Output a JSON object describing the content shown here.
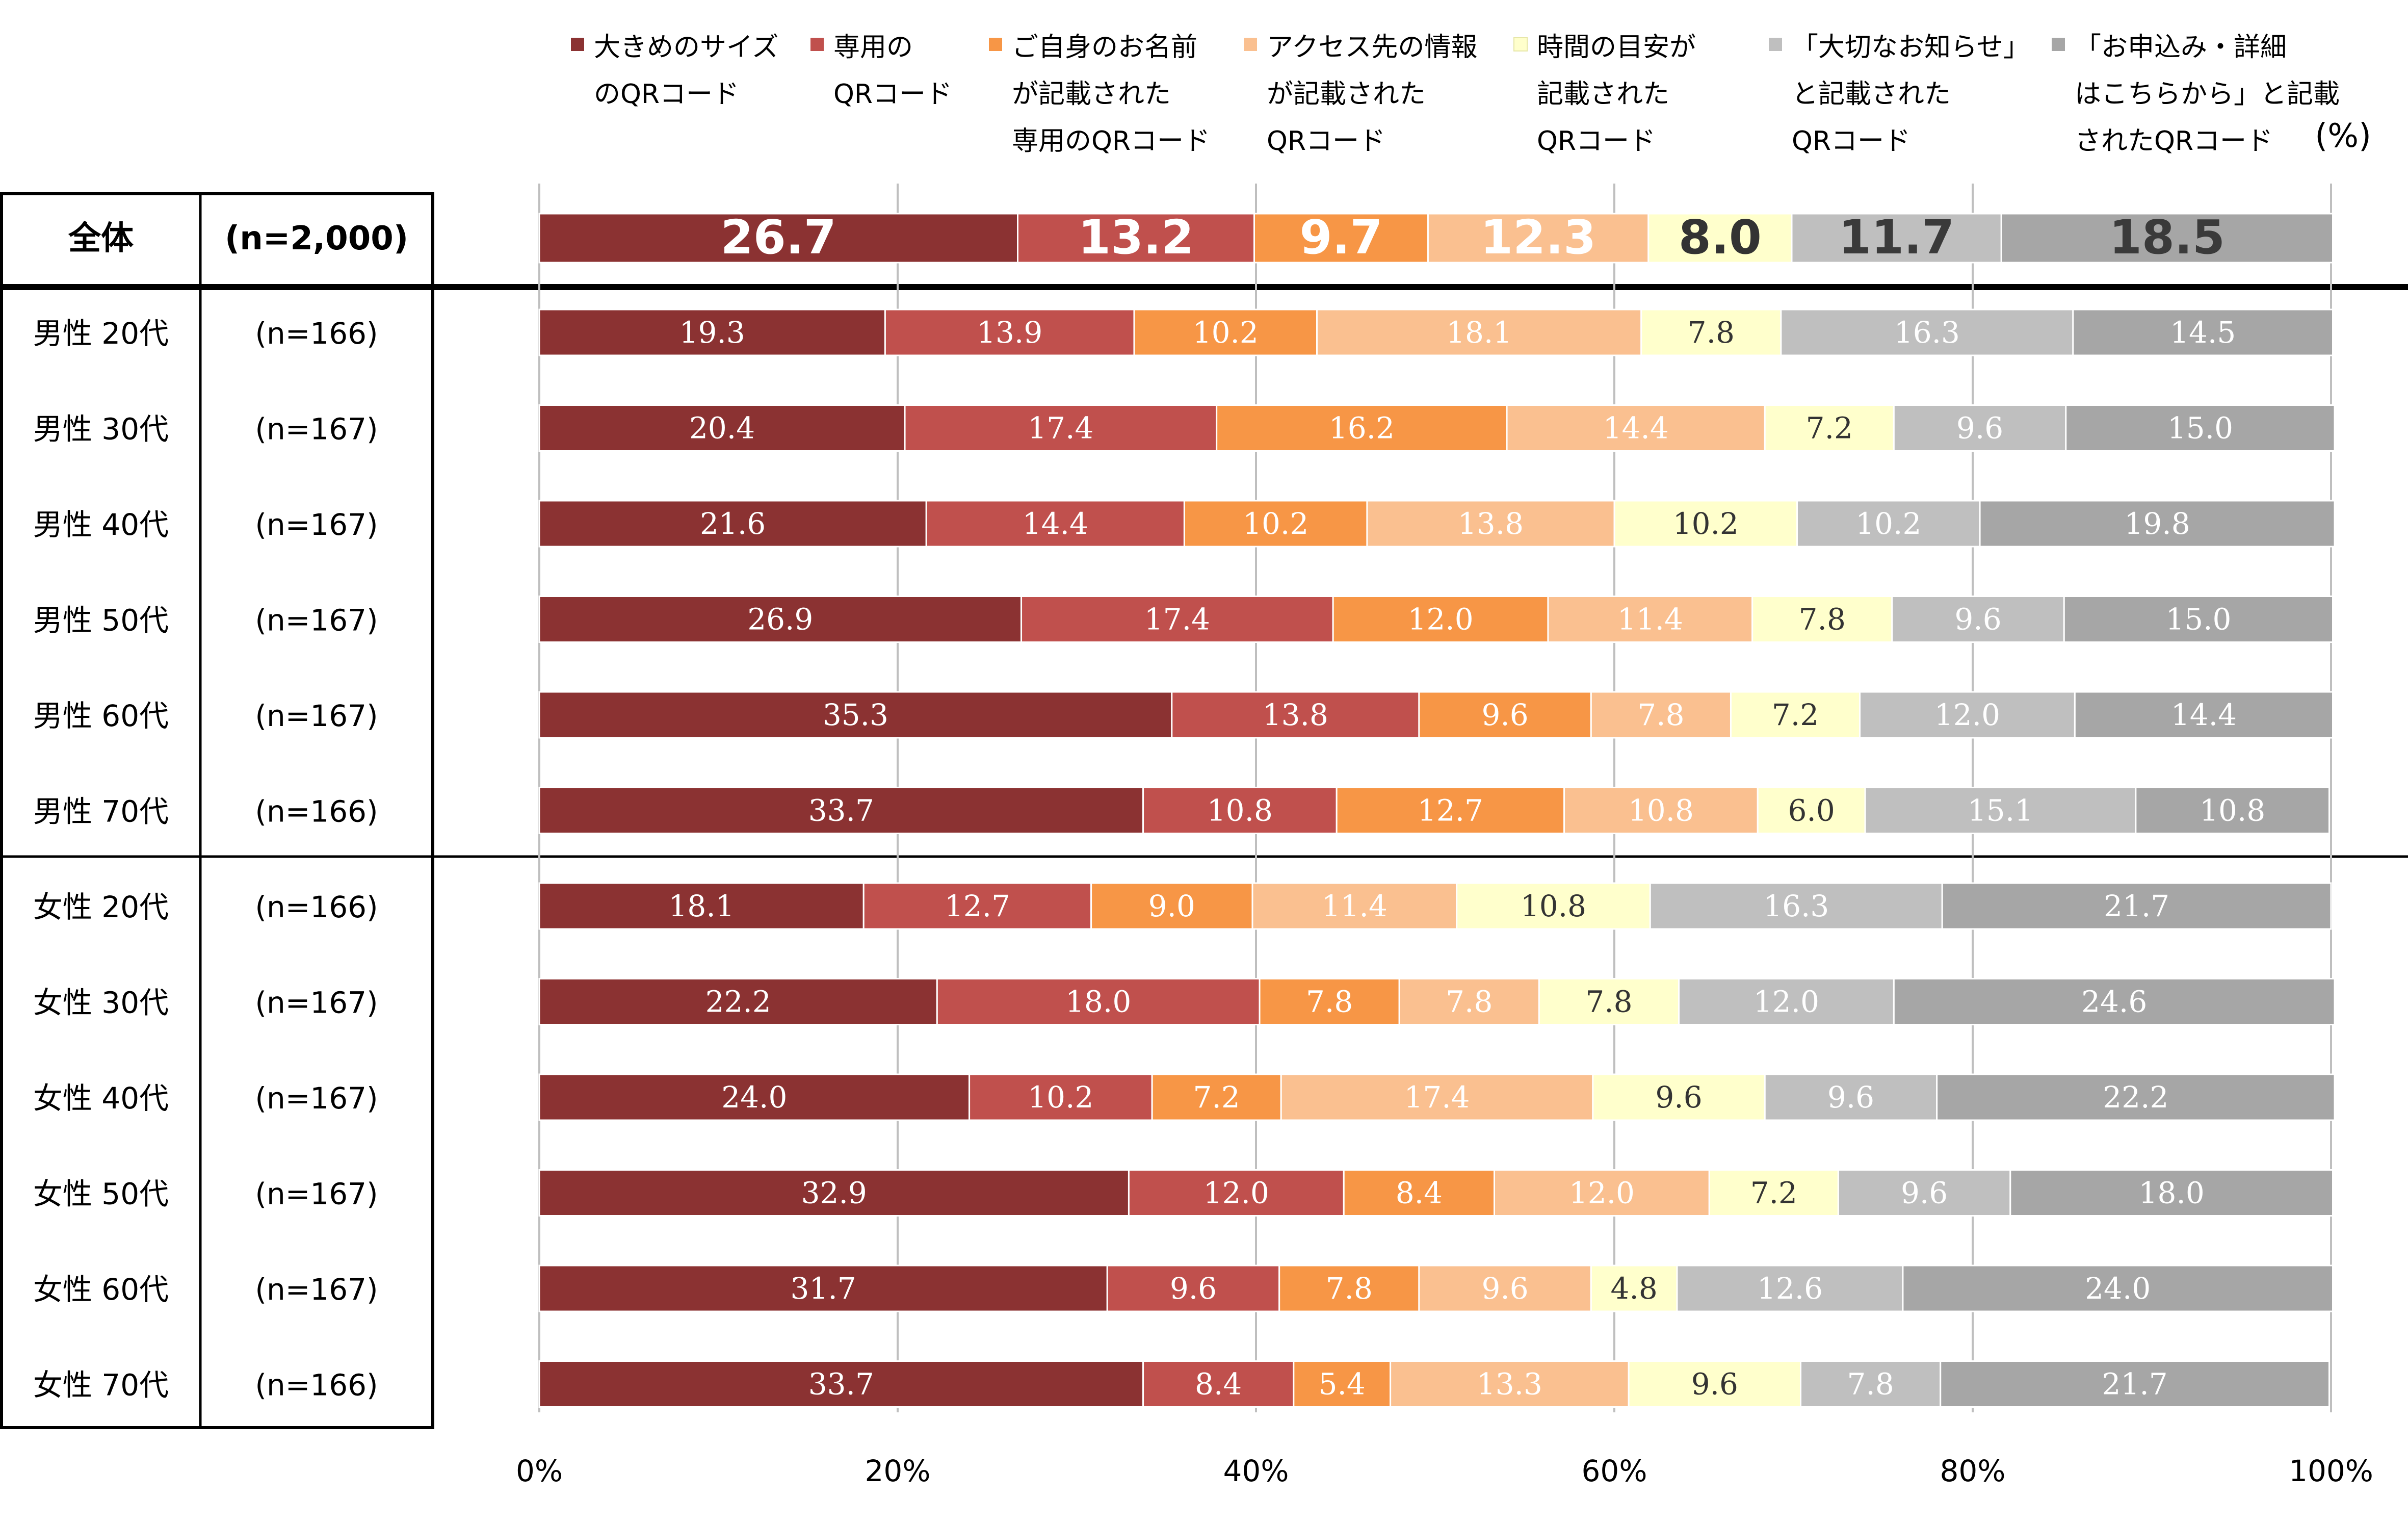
{
  "chart_data": {
    "type": "bar",
    "stacked": true,
    "orientation": "horizontal",
    "unit_label": "(%)",
    "xlim": [
      0,
      100
    ],
    "x_ticks": [
      "0%",
      "20%",
      "40%",
      "60%",
      "80%",
      "100%"
    ],
    "grid": true,
    "legend_position": "top",
    "series": [
      {
        "name": [
          "大きめのサイズ",
          "のQRコード"
        ],
        "color": "#8B3232"
      },
      {
        "name": [
          "専用の",
          "QRコード"
        ],
        "color": "#C0504D"
      },
      {
        "name": [
          "ご自身のお名前",
          "が記載された",
          "専用のQRコード"
        ],
        "color": "#F79646"
      },
      {
        "name": [
          "アクセス先の情報",
          "が記載された",
          "QRコード"
        ],
        "color": "#FAC090"
      },
      {
        "name": [
          "時間の目安が",
          "記載された",
          "QRコード"
        ],
        "color": "#FFFFCC"
      },
      {
        "name": [
          "「大切なお知らせ」",
          "と記載された",
          "QRコード"
        ],
        "color": "#BFBFBF"
      },
      {
        "name": [
          "「お申込み・詳細",
          "はこちらから」と記載",
          "されたQRコード"
        ],
        "color": "#A6A6A6"
      }
    ],
    "rows": [
      {
        "group": "全体",
        "n": "(n=2,000)",
        "total": true,
        "values": [
          26.7,
          13.2,
          9.7,
          12.3,
          8.0,
          11.7,
          18.5
        ]
      },
      {
        "group": "男性  20代",
        "n": "(n=166)",
        "values": [
          19.3,
          13.9,
          10.2,
          18.1,
          7.8,
          16.3,
          14.5
        ]
      },
      {
        "group": "男性  30代",
        "n": "(n=167)",
        "values": [
          20.4,
          17.4,
          16.2,
          14.4,
          7.2,
          9.6,
          15.0
        ]
      },
      {
        "group": "男性  40代",
        "n": "(n=167)",
        "values": [
          21.6,
          14.4,
          10.2,
          13.8,
          10.2,
          10.2,
          19.8
        ]
      },
      {
        "group": "男性  50代",
        "n": "(n=167)",
        "values": [
          26.9,
          17.4,
          12.0,
          11.4,
          7.8,
          9.6,
          15.0
        ]
      },
      {
        "group": "男性  60代",
        "n": "(n=167)",
        "values": [
          35.3,
          13.8,
          9.6,
          7.8,
          7.2,
          12.0,
          14.4
        ]
      },
      {
        "group": "男性  70代",
        "n": "(n=166)",
        "values": [
          33.7,
          10.8,
          12.7,
          10.8,
          6.0,
          15.1,
          10.8
        ]
      },
      {
        "group": "女性  20代",
        "n": "(n=166)",
        "values": [
          18.1,
          12.7,
          9.0,
          11.4,
          10.8,
          16.3,
          21.7
        ]
      },
      {
        "group": "女性  30代",
        "n": "(n=167)",
        "values": [
          22.2,
          18.0,
          7.8,
          7.8,
          7.8,
          12.0,
          24.6
        ]
      },
      {
        "group": "女性  40代",
        "n": "(n=167)",
        "values": [
          24.0,
          10.2,
          7.2,
          17.4,
          9.6,
          9.6,
          22.2
        ]
      },
      {
        "group": "女性  50代",
        "n": "(n=167)",
        "values": [
          32.9,
          12.0,
          8.4,
          12.0,
          7.2,
          9.6,
          18.0
        ]
      },
      {
        "group": "女性  60代",
        "n": "(n=167)",
        "values": [
          31.7,
          9.6,
          7.8,
          9.6,
          4.8,
          12.6,
          24.0
        ]
      },
      {
        "group": "女性  70代",
        "n": "(n=166)",
        "values": [
          33.7,
          8.4,
          5.4,
          13.3,
          9.6,
          7.8,
          21.7
        ]
      }
    ]
  }
}
